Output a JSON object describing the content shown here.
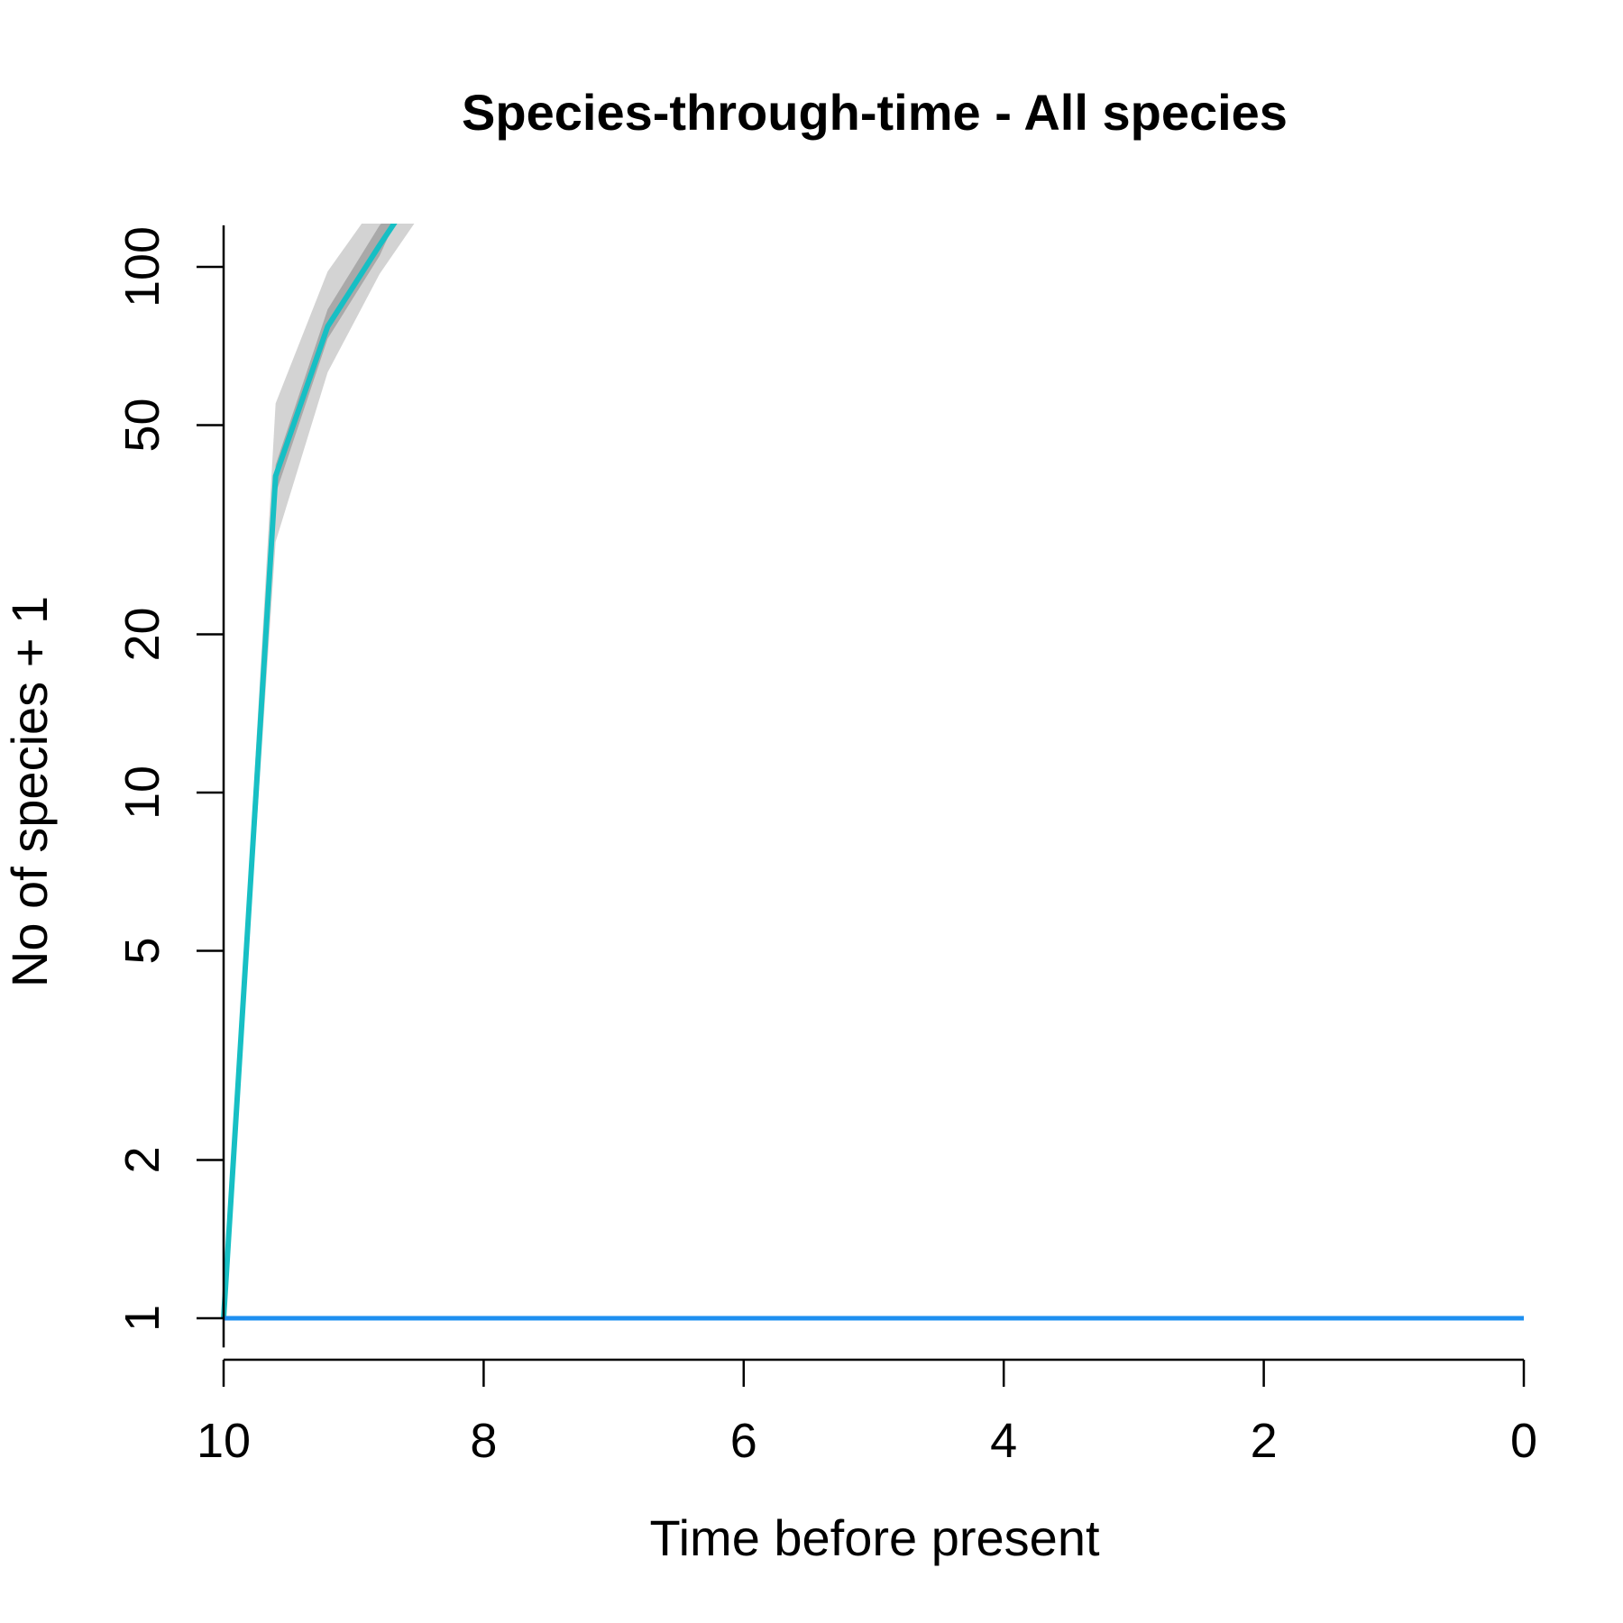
{
  "chart_data": {
    "type": "line",
    "title": "Species-through-time - All species",
    "xlabel": "Time before present",
    "ylabel": "No of species + 1",
    "y_scale": "log",
    "x_reversed": true,
    "xlim": [
      10,
      0
    ],
    "ylim": [
      0.88,
      120
    ],
    "x_ticks": [
      "10",
      "8",
      "6",
      "4",
      "2",
      "0"
    ],
    "y_ticks": [
      "1",
      "2",
      "5",
      "10",
      "20",
      "50",
      "100"
    ],
    "grid": false,
    "series": [
      {
        "role": "outer-band",
        "color": "#d3d3d3",
        "upper": [
          [
            10,
            1
          ],
          [
            9.6,
            55
          ],
          [
            9.2,
            98
          ],
          [
            8.8,
            135
          ]
        ],
        "lower": [
          [
            10,
            1
          ],
          [
            9.6,
            30
          ],
          [
            9.2,
            63
          ],
          [
            8.8,
            97
          ],
          [
            8.4,
            135
          ]
        ]
      },
      {
        "role": "inner-band",
        "color": "#a9a9a9",
        "upper": [
          [
            10,
            1
          ],
          [
            9.6,
            42
          ],
          [
            9.2,
            83
          ],
          [
            8.8,
            120
          ],
          [
            8.6,
            135
          ]
        ],
        "lower": [
          [
            10,
            1
          ],
          [
            9.6,
            37
          ],
          [
            9.2,
            73
          ],
          [
            8.8,
            105
          ],
          [
            8.6,
            135
          ]
        ]
      },
      {
        "role": "median",
        "color": "#17bfc4",
        "values": [
          [
            10,
            1
          ],
          [
            9.6,
            40
          ],
          [
            9.2,
            77
          ],
          [
            8.8,
            110
          ],
          [
            8.65,
            125
          ]
        ]
      },
      {
        "role": "baseline",
        "color": "#1e8ff0",
        "values": [
          [
            10,
            1
          ],
          [
            0,
            1
          ]
        ]
      }
    ]
  }
}
